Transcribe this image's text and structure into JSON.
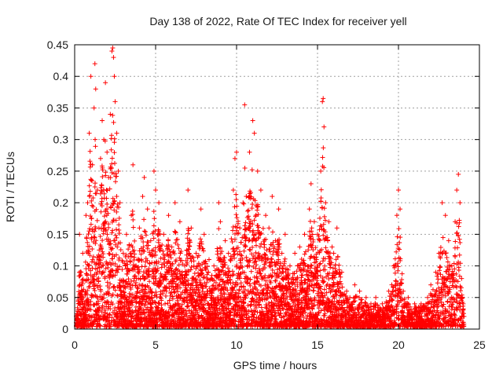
{
  "chart_data": {
    "type": "scatter",
    "title": "Day 138 of 2022, Rate Of TEC Index for receiver yell",
    "xlabel": "GPS time / hours",
    "ylabel": "ROTI / TECUs",
    "xlim": [
      0,
      25
    ],
    "ylim": [
      0,
      0.45
    ],
    "xticks": [
      "0",
      "5",
      "10",
      "15",
      "20",
      "25"
    ],
    "yticks": [
      "0",
      "0.05",
      "0.1",
      "0.15",
      "0.2",
      "0.25",
      "0.3",
      "0.35",
      "0.4",
      "0.45"
    ],
    "grid": true,
    "marker": "+",
    "color": "#ff0000",
    "series": [
      {
        "points": [
          [
            0.1,
            0.02
          ],
          [
            0.2,
            0.05
          ],
          [
            0.3,
            0.15
          ],
          [
            0.4,
            0.09
          ],
          [
            0.5,
            0.12
          ],
          [
            0.6,
            0.04
          ],
          [
            0.7,
            0.18
          ],
          [
            0.8,
            0.2
          ],
          [
            0.9,
            0.31
          ],
          [
            1.0,
            0.4
          ],
          [
            1.1,
            0.26
          ],
          [
            1.2,
            0.35
          ],
          [
            1.25,
            0.42
          ],
          [
            1.3,
            0.38
          ],
          [
            1.4,
            0.22
          ],
          [
            1.5,
            0.16
          ],
          [
            1.6,
            0.27
          ],
          [
            1.7,
            0.33
          ],
          [
            1.8,
            0.3
          ],
          [
            1.9,
            0.39
          ],
          [
            2.0,
            0.28
          ],
          [
            2.1,
            0.24
          ],
          [
            2.2,
            0.34
          ],
          [
            2.3,
            0.44
          ],
          [
            2.35,
            0.445
          ],
          [
            2.4,
            0.43
          ],
          [
            2.45,
            0.4
          ],
          [
            2.5,
            0.36
          ],
          [
            2.6,
            0.31
          ],
          [
            2.7,
            0.25
          ],
          [
            2.8,
            0.2
          ],
          [
            3.0,
            0.12
          ],
          [
            3.2,
            0.15
          ],
          [
            3.5,
            0.18
          ],
          [
            3.6,
            0.26
          ],
          [
            3.8,
            0.1
          ],
          [
            4.0,
            0.16
          ],
          [
            4.2,
            0.21
          ],
          [
            4.3,
            0.24
          ],
          [
            4.5,
            0.19
          ],
          [
            4.7,
            0.14
          ],
          [
            4.9,
            0.25
          ],
          [
            5.0,
            0.22
          ],
          [
            5.2,
            0.2
          ],
          [
            5.5,
            0.15
          ],
          [
            5.8,
            0.18
          ],
          [
            6.0,
            0.13
          ],
          [
            6.2,
            0.2
          ],
          [
            6.5,
            0.17
          ],
          [
            6.8,
            0.1
          ],
          [
            7.0,
            0.22
          ],
          [
            7.2,
            0.16
          ],
          [
            7.5,
            0.12
          ],
          [
            7.8,
            0.19
          ],
          [
            8.0,
            0.15
          ],
          [
            8.3,
            0.11
          ],
          [
            8.6,
            0.1
          ],
          [
            8.9,
            0.2
          ],
          [
            9.0,
            0.17
          ],
          [
            9.3,
            0.14
          ],
          [
            9.5,
            0.12
          ],
          [
            9.8,
            0.22
          ],
          [
            9.9,
            0.27
          ],
          [
            10.0,
            0.28
          ],
          [
            10.2,
            0.16
          ],
          [
            10.4,
            0.2
          ],
          [
            10.5,
            0.355
          ],
          [
            10.6,
            0.21
          ],
          [
            10.8,
            0.28
          ],
          [
            11.0,
            0.33
          ],
          [
            11.1,
            0.31
          ],
          [
            11.3,
            0.25
          ],
          [
            11.5,
            0.22
          ],
          [
            11.8,
            0.18
          ],
          [
            12.0,
            0.16
          ],
          [
            12.2,
            0.21
          ],
          [
            12.4,
            0.14
          ],
          [
            12.6,
            0.19
          ],
          [
            12.8,
            0.12
          ],
          [
            13.0,
            0.15
          ],
          [
            13.3,
            0.1
          ],
          [
            13.6,
            0.12
          ],
          [
            13.9,
            0.13
          ],
          [
            14.2,
            0.15
          ],
          [
            14.5,
            0.19
          ],
          [
            14.6,
            0.23
          ],
          [
            14.8,
            0.17
          ],
          [
            15.0,
            0.15
          ],
          [
            15.2,
            0.25
          ],
          [
            15.3,
            0.36
          ],
          [
            15.35,
            0.365
          ],
          [
            15.4,
            0.32
          ],
          [
            15.5,
            0.2
          ],
          [
            15.7,
            0.17
          ],
          [
            15.9,
            0.13
          ],
          [
            16.0,
            0.12
          ],
          [
            16.2,
            0.16
          ],
          [
            16.5,
            0.09
          ],
          [
            16.8,
            0.06
          ],
          [
            17.0,
            0.05
          ],
          [
            17.3,
            0.07
          ],
          [
            17.6,
            0.06
          ],
          [
            18.0,
            0.05
          ],
          [
            18.3,
            0.04
          ],
          [
            18.6,
            0.05
          ],
          [
            19.0,
            0.04
          ],
          [
            19.4,
            0.06
          ],
          [
            19.7,
            0.1
          ],
          [
            19.9,
            0.18
          ],
          [
            20.0,
            0.22
          ],
          [
            20.1,
            0.19
          ],
          [
            20.3,
            0.06
          ],
          [
            20.6,
            0.05
          ],
          [
            21.0,
            0.04
          ],
          [
            21.4,
            0.04
          ],
          [
            21.8,
            0.05
          ],
          [
            22.0,
            0.07
          ],
          [
            22.3,
            0.09
          ],
          [
            22.5,
            0.12
          ],
          [
            22.7,
            0.2
          ],
          [
            22.9,
            0.18
          ],
          [
            23.1,
            0.14
          ],
          [
            23.3,
            0.1
          ],
          [
            23.5,
            0.17
          ],
          [
            23.6,
            0.22
          ],
          [
            23.7,
            0.245
          ],
          [
            23.8,
            0.2
          ],
          [
            23.9,
            0.08
          ],
          [
            24.0,
            0.04
          ],
          [
            24.05,
            0.02
          ]
        ]
      }
    ]
  }
}
